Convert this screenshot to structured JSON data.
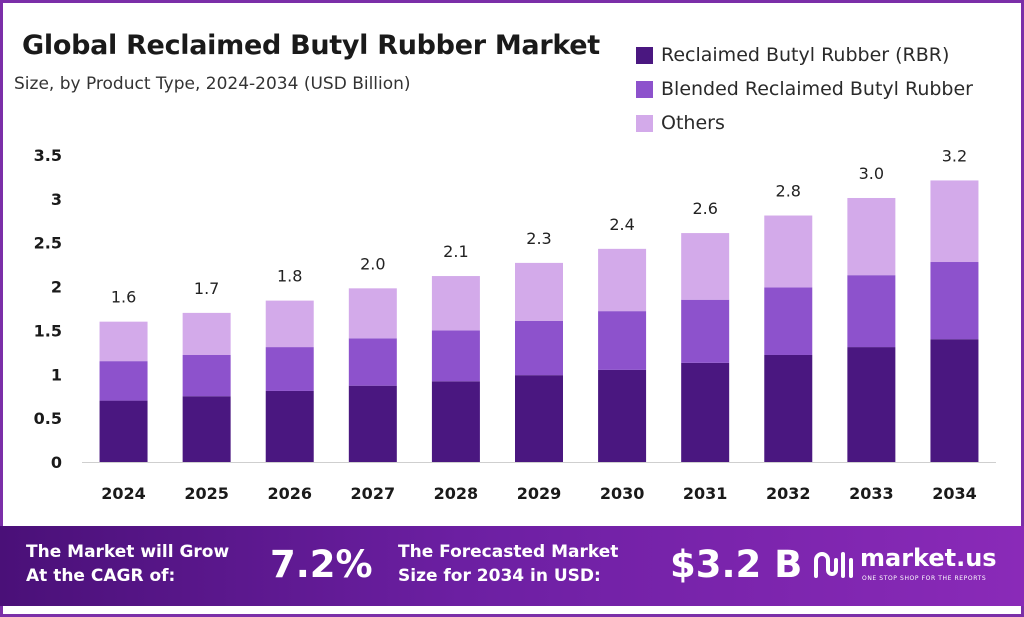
{
  "header": {
    "title": "Global Reclaimed Butyl Rubber Market",
    "subtitle": "Size, by Product Type, 2024-2034 (USD Billion)"
  },
  "legend": [
    {
      "label": "Reclaimed Butyl Rubber (RBR)",
      "color": "#4a1780"
    },
    {
      "label": "Blended Reclaimed Butyl Rubber",
      "color": "#8d52cc"
    },
    {
      "label": "Others",
      "color": "#d3aaea"
    }
  ],
  "chart_data": {
    "type": "bar",
    "stacked": true,
    "categories": [
      "2024",
      "2025",
      "2026",
      "2027",
      "2028",
      "2029",
      "2030",
      "2031",
      "2032",
      "2033",
      "2034"
    ],
    "series": [
      {
        "name": "Reclaimed Butyl Rubber (RBR)",
        "color": "#4a1780",
        "values": [
          0.7,
          0.75,
          0.81,
          0.87,
          0.92,
          0.99,
          1.05,
          1.13,
          1.22,
          1.31,
          1.4
        ]
      },
      {
        "name": "Blended Reclaimed Butyl Rubber",
        "color": "#8d52cc",
        "values": [
          0.45,
          0.47,
          0.5,
          0.54,
          0.58,
          0.62,
          0.67,
          0.72,
          0.77,
          0.82,
          0.88
        ]
      },
      {
        "name": "Others",
        "color": "#d3aaea",
        "values": [
          0.45,
          0.48,
          0.53,
          0.57,
          0.62,
          0.66,
          0.71,
          0.76,
          0.82,
          0.88,
          0.93
        ]
      }
    ],
    "totals": [
      "1.6",
      "1.7",
      "1.8",
      "2.0",
      "2.1",
      "2.3",
      "2.4",
      "2.6",
      "2.8",
      "3.0",
      "3.2"
    ],
    "yticks": [
      "0",
      "0.5",
      "1",
      "1.5",
      "2",
      "2.5",
      "3",
      "3.5"
    ],
    "ylim": [
      0,
      3.5
    ],
    "grid": false,
    "legend_position": "top-right"
  },
  "banner": {
    "cagr_label_line1": "The Market will Grow",
    "cagr_label_line2": "At the CAGR of:",
    "cagr_value": "7.2%",
    "forecast_label_line1": "The Forecasted Market",
    "forecast_label_line2": "Size for 2034 in USD:",
    "forecast_value": "$3.2 B",
    "brand_name": "market.us",
    "brand_tagline": "ONE STOP SHOP FOR THE REPORTS"
  }
}
